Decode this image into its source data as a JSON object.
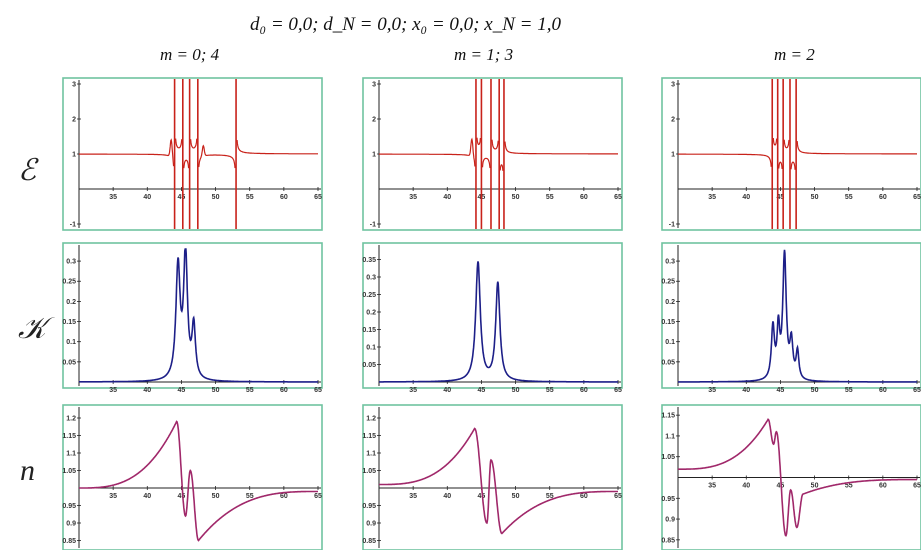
{
  "header": {
    "title": "d₀ = 0,0;     d_N = 0,0;     x₀ = 0,0;     x_N = 1,0",
    "columns": [
      "m = 0; 4",
      "m = 1; 3",
      "m = 2"
    ],
    "rows": [
      "ℰ",
      "𝒦",
      "n"
    ]
  },
  "colors": {
    "frame": "#6fc3a0",
    "epsilon": "#c8221a",
    "kappa": "#1d1f88",
    "n": "#a0286a",
    "axis": "#222222"
  },
  "chart_data": [
    {
      "type": "line",
      "row": "epsilon",
      "column": "m = 0; 4",
      "xlim": [
        30,
        65
      ],
      "ylim": [
        -1,
        3
      ],
      "x_ticks": [
        35,
        40,
        45,
        50,
        55,
        60,
        65
      ],
      "y_ticks": [
        -1,
        1,
        2,
        3
      ],
      "axis_y": 0,
      "baseline": 1.0,
      "poles": [
        44.0,
        45.2,
        46.2,
        47.4,
        53.0
      ],
      "spikes": [
        [
          43.5,
          1.5
        ],
        [
          48.2,
          1.3
        ]
      ]
    },
    {
      "type": "line",
      "row": "epsilon",
      "column": "m = 1; 3",
      "xlim": [
        30,
        65
      ],
      "ylim": [
        -1,
        3
      ],
      "x_ticks": [
        35,
        40,
        45,
        50,
        55,
        60,
        65
      ],
      "y_ticks": [
        -1,
        1,
        2,
        3
      ],
      "axis_y": 0,
      "baseline": 1.0,
      "poles": [
        44.2,
        45.0,
        46.4,
        47.6,
        48.3
      ],
      "spikes": [
        [
          43.6,
          1.5
        ]
      ]
    },
    {
      "type": "line",
      "row": "epsilon",
      "column": "m = 2",
      "xlim": [
        30,
        65
      ],
      "ylim": [
        -1,
        3
      ],
      "x_ticks": [
        35,
        40,
        45,
        50,
        55,
        60,
        65
      ],
      "y_ticks": [
        -1,
        1,
        2,
        3
      ],
      "axis_y": 0,
      "baseline": 1.0,
      "poles": [
        43.8,
        44.6,
        45.4,
        46.4,
        47.3
      ],
      "spikes": []
    },
    {
      "type": "line",
      "row": "kappa",
      "column": "m = 0; 4",
      "xlim": [
        30,
        65
      ],
      "ylim": [
        0,
        0.33
      ],
      "x_ticks": [
        35,
        40,
        45,
        50,
        55,
        60,
        65
      ],
      "y_ticks": [
        0.05,
        0.1,
        0.15,
        0.2,
        0.25,
        0.3
      ],
      "axis_y": 0,
      "peaks": [
        [
          44.5,
          0.28,
          0.55
        ],
        [
          45.6,
          0.31,
          0.5
        ],
        [
          46.8,
          0.13,
          0.45
        ]
      ]
    },
    {
      "type": "line",
      "row": "kappa",
      "column": "m = 1; 3",
      "xlim": [
        30,
        65
      ],
      "ylim": [
        0,
        0.38
      ],
      "x_ticks": [
        35,
        40,
        45,
        50,
        55,
        60,
        65
      ],
      "y_ticks": [
        0.05,
        0.1,
        0.15,
        0.2,
        0.25,
        0.3,
        0.35
      ],
      "axis_y": 0,
      "peaks": [
        [
          44.5,
          0.34,
          0.6
        ],
        [
          47.4,
          0.28,
          0.55
        ]
      ]
    },
    {
      "type": "line",
      "row": "kappa",
      "column": "m = 2",
      "xlim": [
        30,
        65
      ],
      "ylim": [
        0,
        0.33
      ],
      "x_ticks": [
        35,
        40,
        45,
        50,
        55,
        60,
        65
      ],
      "y_ticks": [
        0.05,
        0.1,
        0.15,
        0.2,
        0.25,
        0.3
      ],
      "axis_y": 0,
      "peaks": [
        [
          43.9,
          0.13,
          0.4
        ],
        [
          44.7,
          0.12,
          0.35
        ],
        [
          45.6,
          0.31,
          0.45
        ],
        [
          46.6,
          0.09,
          0.4
        ],
        [
          47.5,
          0.07,
          0.35
        ]
      ]
    },
    {
      "type": "line",
      "row": "n",
      "column": "m = 0; 4",
      "xlim": [
        30,
        65
      ],
      "ylim": [
        0.84,
        1.22
      ],
      "x_ticks": [
        35,
        40,
        45,
        50,
        55,
        60,
        65
      ],
      "y_ticks": [
        0.85,
        0.9,
        0.95,
        1.05,
        1.1,
        1.15,
        1.2
      ],
      "axis_y": 1,
      "ranges": [
        [
          30,
          44.3,
          1.0,
          1.19
        ],
        [
          44.3,
          45.6,
          1.19,
          0.92
        ],
        [
          45.6,
          46.3,
          0.92,
          1.05
        ],
        [
          46.3,
          47.5,
          1.05,
          0.85
        ],
        [
          47.5,
          65,
          0.85,
          0.99
        ]
      ]
    },
    {
      "type": "line",
      "row": "n",
      "column": "m = 1; 3",
      "xlim": [
        30,
        65
      ],
      "ylim": [
        0.84,
        1.22
      ],
      "x_ticks": [
        35,
        40,
        45,
        50,
        55,
        60,
        65
      ],
      "y_ticks": [
        0.85,
        0.9,
        0.95,
        1.05,
        1.1,
        1.15,
        1.2
      ],
      "axis_y": 1,
      "ranges": [
        [
          30,
          44.0,
          1.01,
          1.17
        ],
        [
          44.0,
          45.8,
          1.17,
          0.9
        ],
        [
          45.8,
          46.4,
          0.9,
          1.08
        ],
        [
          46.4,
          48.0,
          1.08,
          0.87
        ],
        [
          48.0,
          65,
          0.87,
          0.99
        ]
      ]
    },
    {
      "type": "line",
      "row": "n",
      "column": "m = 2",
      "xlim": [
        30,
        65
      ],
      "ylim": [
        0.84,
        1.16
      ],
      "x_ticks": [
        35,
        40,
        45,
        50,
        55,
        60,
        65
      ],
      "y_ticks": [
        0.85,
        0.9,
        0.95,
        1.05,
        1.1,
        1.15
      ],
      "axis_y": 1,
      "ranges": [
        [
          30,
          43.2,
          1.02,
          1.14
        ],
        [
          43.2,
          44.0,
          1.14,
          1.08
        ],
        [
          44.0,
          44.4,
          1.08,
          1.11
        ],
        [
          44.4,
          45.8,
          1.11,
          0.86
        ],
        [
          45.8,
          46.5,
          0.86,
          0.97
        ],
        [
          46.5,
          47.4,
          0.97,
          0.88
        ],
        [
          47.4,
          48.3,
          0.88,
          0.96
        ],
        [
          48.3,
          65,
          0.96,
          0.995
        ]
      ]
    }
  ]
}
